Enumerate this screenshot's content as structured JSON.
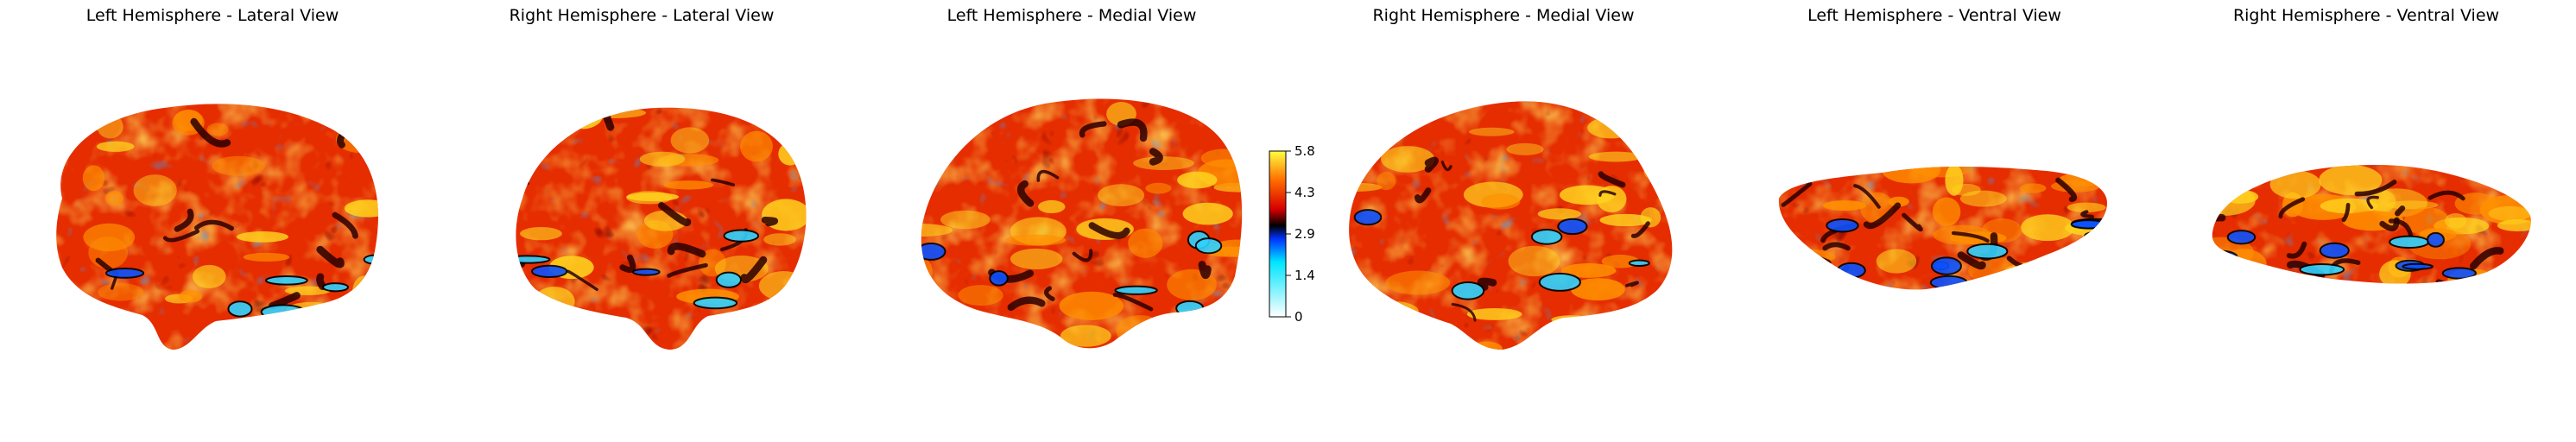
{
  "views": [
    {
      "id": "left-lateral",
      "title": "Left Hemisphere - Lateral View"
    },
    {
      "id": "right-lateral",
      "title": "Right Hemisphere - Lateral View"
    },
    {
      "id": "left-medial",
      "title": "Left Hemisphere - Medial View"
    },
    {
      "id": "right-medial",
      "title": "Right Hemisphere - Medial View"
    },
    {
      "id": "left-ventral",
      "title": "Left Hemisphere - Ventral View"
    },
    {
      "id": "right-ventral",
      "title": "Right Hemisphere - Ventral View"
    }
  ],
  "colorbar": {
    "min": 0,
    "max": 5.8,
    "ticks": [
      "0",
      "1.4",
      "2.9",
      "4.3",
      "5.8"
    ],
    "colormap": "cold_hot",
    "colors": {
      "low": "#ffffff",
      "cyan": "#00e5ff",
      "blue": "#0033ff",
      "dark": "#000000",
      "red": "#d60000",
      "orange": "#ff6a00",
      "yellow": "#ffff40"
    }
  },
  "surface_palette": {
    "base": "#e52d00",
    "hot": "#ff9000",
    "hotter": "#ffd21e",
    "dark": "#2a0000",
    "blue": "#0a52ff",
    "cyan": "#2fd2ff"
  }
}
